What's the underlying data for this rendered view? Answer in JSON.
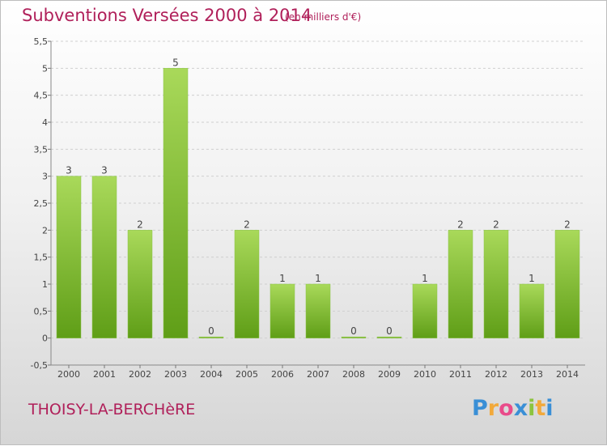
{
  "header": {
    "title": "Subventions Versées 2000 à 2014",
    "subtitle": "(en milliers d'€)"
  },
  "footer": {
    "commune": "THOISY-LA-BERCHèRE",
    "logo_letters": [
      "P",
      "r",
      "o",
      "x",
      "i",
      "t",
      "i"
    ],
    "logo_colors": [
      "#3a8fd6",
      "#f2a93b",
      "#e94b8a",
      "#3a8fd6",
      "#8cc43f",
      "#f2a93b",
      "#3a8fd6"
    ]
  },
  "colors": {
    "bar_top": "#a9d95a",
    "bar_bottom": "#5f9e17",
    "title": "#b0205a"
  },
  "chart_data": {
    "type": "bar",
    "categories": [
      "2000",
      "2001",
      "2002",
      "2003",
      "2004",
      "2005",
      "2006",
      "2007",
      "2008",
      "2009",
      "2010",
      "2011",
      "2012",
      "2013",
      "2014"
    ],
    "values": [
      3,
      3,
      2,
      5,
      0,
      2,
      1,
      1,
      0,
      0,
      1,
      2,
      2,
      1,
      2
    ],
    "title": "Subventions Versées 2000 à 2014",
    "xlabel": "",
    "ylabel": "",
    "ylim": [
      -0.5,
      5.5
    ],
    "yticks": [
      -0.5,
      0,
      0.5,
      1,
      1.5,
      2,
      2.5,
      3,
      3.5,
      4,
      4.5,
      5,
      5.5
    ],
    "ytick_labels": [
      "-0,5",
      "0",
      "0,5",
      "1",
      "1,5",
      "2",
      "2,5",
      "3",
      "3,5",
      "4",
      "4,5",
      "5",
      "5,5"
    ],
    "grid": "horizontal dashed",
    "legend": "none"
  }
}
